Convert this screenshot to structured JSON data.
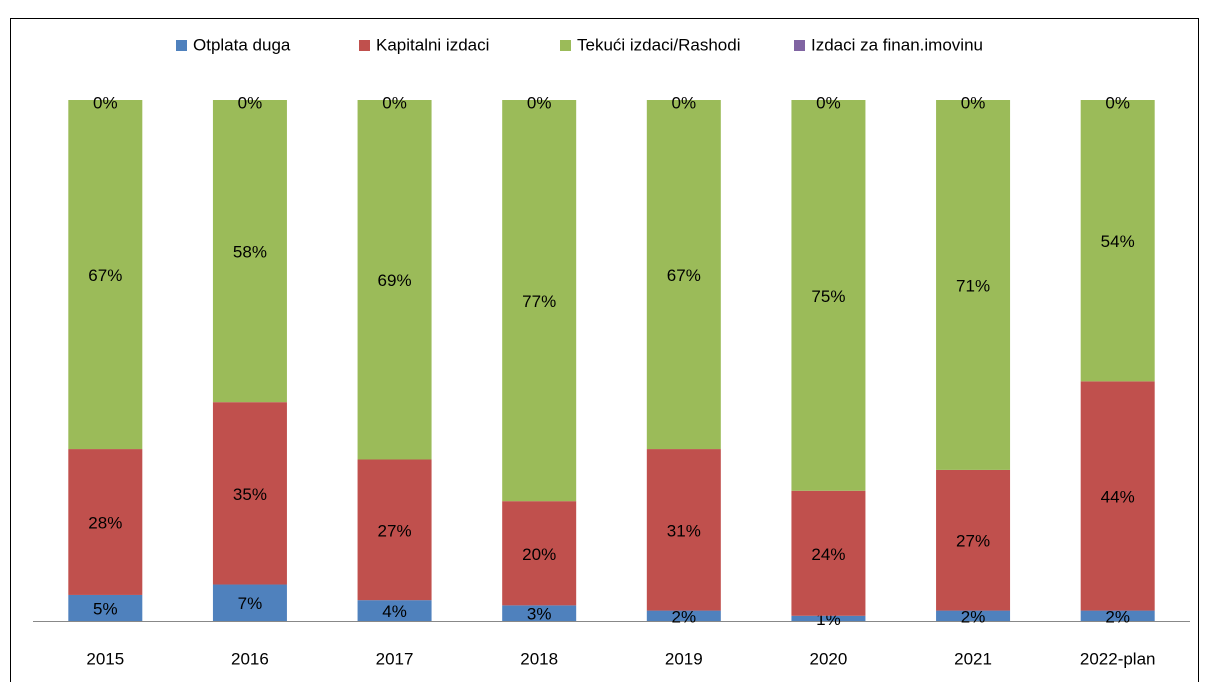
{
  "chart_data": {
    "type": "stacked_bar",
    "categories": [
      "2015",
      "2016",
      "2017",
      "2018",
      "2019",
      "2020",
      "2021",
      "2022-plan"
    ],
    "series": [
      {
        "name": "Otplata duga",
        "color": "#4f81bd",
        "values": [
          5,
          7,
          4,
          3,
          2,
          1,
          2,
          2
        ],
        "value_labels": [
          "5%",
          "7%",
          "4%",
          "3%",
          "2%",
          "1%",
          "2%",
          "2%"
        ]
      },
      {
        "name": "Kapitalni izdaci",
        "color": "#c0504d",
        "values": [
          28,
          35,
          27,
          20,
          31,
          24,
          27,
          44
        ],
        "value_labels": [
          "28%",
          "35%",
          "27%",
          "20%",
          "31%",
          "24%",
          "27%",
          "44%"
        ]
      },
      {
        "name": "Tekući izdaci/Rashodi",
        "color": "#9bbb59",
        "values": [
          67,
          58,
          69,
          77,
          67,
          75,
          71,
          54
        ],
        "value_labels": [
          "67%",
          "58%",
          "69%",
          "77%",
          "67%",
          "75%",
          "71%",
          "54%"
        ]
      },
      {
        "name": "Izdaci za finan.imovinu",
        "color": "#8064a2",
        "values": [
          0,
          0,
          0,
          0,
          0,
          0,
          0,
          0
        ],
        "value_labels": [
          "0%",
          "0%",
          "0%",
          "0%",
          "0%",
          "0%",
          "0%",
          "0%"
        ]
      }
    ],
    "ylim": [
      0,
      100
    ],
    "legend": "top"
  }
}
